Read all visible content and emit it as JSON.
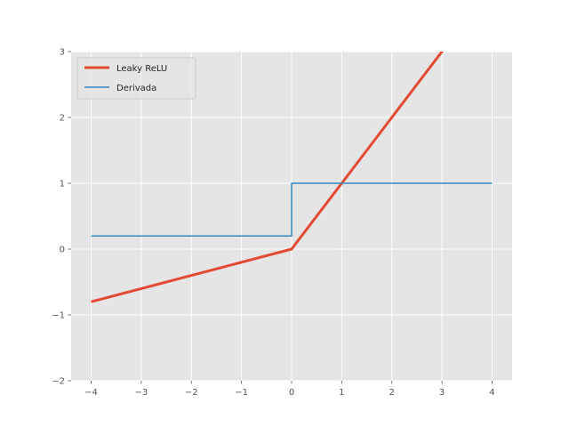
{
  "chart_data": {
    "type": "line",
    "title": "",
    "xlabel": "",
    "ylabel": "",
    "xlim": [
      -4.4,
      4.4
    ],
    "ylim": [
      -2,
      3
    ],
    "x_ticks": [
      -4,
      -3,
      -2,
      -1,
      0,
      1,
      2,
      3,
      4
    ],
    "y_ticks": [
      -2,
      -1,
      0,
      1,
      2,
      3
    ],
    "x_tick_labels": [
      "−4",
      "−3",
      "−2",
      "−1",
      "0",
      "1",
      "2",
      "3",
      "4"
    ],
    "y_tick_labels": [
      "−2",
      "−1",
      "0",
      "1",
      "2",
      "3"
    ],
    "grid": true,
    "legend_position": "top-left",
    "series": [
      {
        "name": "Leaky ReLU",
        "color": "#E24A33",
        "line_width": 3,
        "x": [
          -4,
          0,
          4
        ],
        "y": [
          -0.8,
          0,
          4
        ]
      },
      {
        "name": "Derivada",
        "color": "#348ABD",
        "line_width": 1.5,
        "x": [
          -4,
          0,
          0,
          4
        ],
        "y": [
          0.2,
          0.2,
          1,
          1
        ]
      }
    ]
  }
}
